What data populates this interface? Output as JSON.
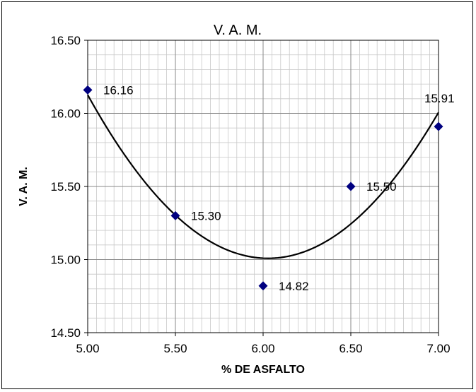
{
  "chart_data": {
    "type": "scatter",
    "title": "V. A. M.",
    "xlabel": "% DE ASFALTO",
    "ylabel": "V. A. M.",
    "xlim": [
      5.0,
      7.0
    ],
    "ylim": [
      14.5,
      16.5
    ],
    "x_ticks": [
      "5.00",
      "5.50",
      "6.00",
      "6.50",
      "7.00"
    ],
    "y_ticks": [
      "14.50",
      "15.00",
      "15.50",
      "16.00",
      "16.50"
    ],
    "grid": true,
    "legend": "none",
    "marker_color": "#000080",
    "curve_color": "#000000",
    "points": [
      {
        "x": 5.0,
        "y": 16.16,
        "label": "16.16"
      },
      {
        "x": 5.5,
        "y": 15.3,
        "label": "15.30"
      },
      {
        "x": 6.0,
        "y": 14.82,
        "label": "14.82"
      },
      {
        "x": 6.5,
        "y": 15.5,
        "label": "15.50"
      },
      {
        "x": 7.0,
        "y": 15.91,
        "label": "15.91"
      }
    ],
    "trendline": {
      "type": "polynomial",
      "order": 2
    }
  }
}
